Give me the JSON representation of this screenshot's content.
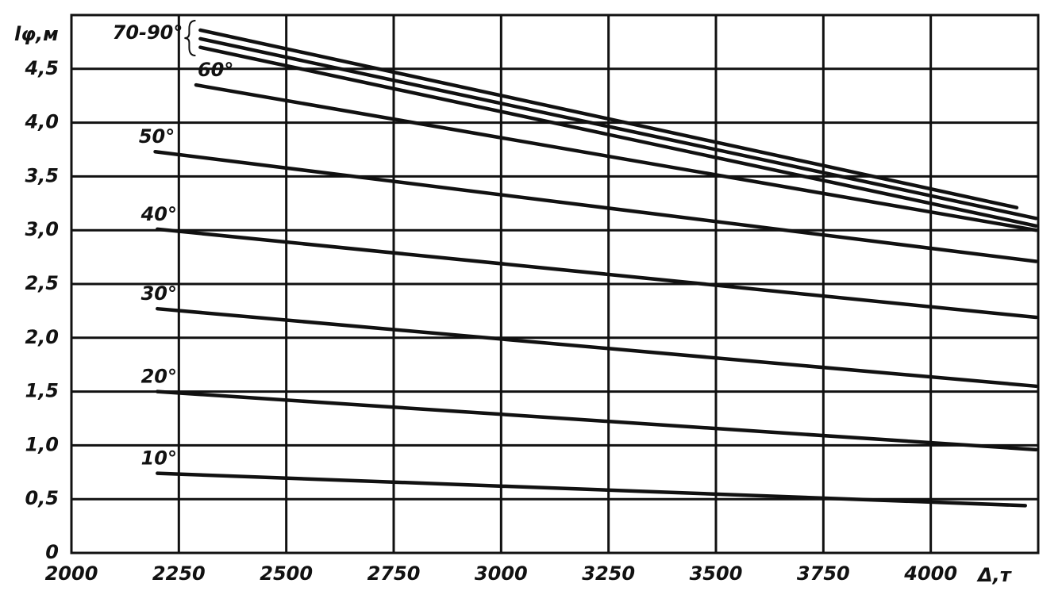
{
  "chart_data": {
    "type": "line",
    "y_label": "lφ,м",
    "x_label": "Δ,т",
    "xlim": [
      2000,
      4250
    ],
    "xticks": [
      2000,
      2250,
      2500,
      2750,
      3000,
      3250,
      3500,
      3750,
      4000
    ],
    "ylim": [
      0,
      5.0
    ],
    "yticks": [
      0,
      {
        "value": 0.5,
        "label": "0,5"
      },
      {
        "value": 1.0,
        "label": "1,0"
      },
      {
        "value": 1.5,
        "label": "1,5"
      },
      {
        "value": 2.0,
        "label": "2,0"
      },
      {
        "value": 2.5,
        "label": "2,5"
      },
      {
        "value": 3.0,
        "label": "3,0"
      },
      {
        "value": 3.5,
        "label": "3,5"
      },
      {
        "value": 4.0,
        "label": "4,0"
      },
      {
        "value": 4.5,
        "label": "4,5"
      }
    ],
    "grid": true,
    "color": "#111111",
    "series": [
      {
        "name": "10°",
        "x": [
          2200,
          4220
        ],
        "values": [
          0.74,
          0.44
        ]
      },
      {
        "name": "20°",
        "x": [
          2200,
          4245
        ],
        "values": [
          1.5,
          0.96
        ]
      },
      {
        "name": "30°",
        "x": [
          2200,
          4245
        ],
        "values": [
          2.27,
          1.55
        ]
      },
      {
        "name": "40°",
        "x": [
          2200,
          4245
        ],
        "values": [
          3.01,
          2.19
        ]
      },
      {
        "name": "50°",
        "x": [
          2195,
          4245
        ],
        "values": [
          3.73,
          2.71
        ]
      },
      {
        "name": "60°",
        "x": [
          2290,
          4245
        ],
        "values": [
          4.35,
          3.0
        ]
      },
      {
        "name": "70-90°",
        "x": [
          2300,
          4200
        ],
        "values": [
          4.86,
          3.21
        ]
      },
      {
        "x": [
          2300,
          4245
        ],
        "values": [
          4.78,
          3.11
        ]
      },
      {
        "x": [
          2300,
          4245
        ],
        "values": [
          4.7,
          3.04
        ]
      }
    ]
  }
}
